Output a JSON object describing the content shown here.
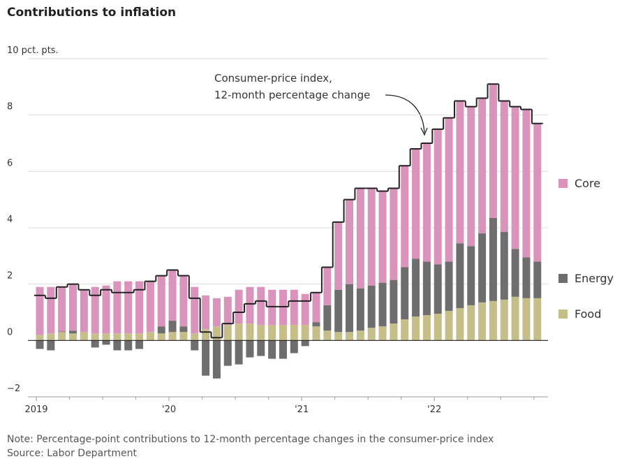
{
  "chart_data": {
    "type": "stacked-bar-with-step-line",
    "title": "Contributions to inflation",
    "annotation": [
      "Consumer-price index,",
      "12-month percentage change"
    ],
    "note": "Note: Percentage-point contributions to 12-month percentage changes in the consumer-price index",
    "source": "Source: Labor Department",
    "categories": [
      "2019",
      null,
      null,
      null,
      null,
      null,
      null,
      null,
      null,
      null,
      null,
      null,
      "'20",
      null,
      null,
      null,
      null,
      null,
      null,
      null,
      null,
      null,
      null,
      null,
      "'21",
      null,
      null,
      null,
      null,
      null,
      null,
      null,
      null,
      null,
      null,
      null,
      "'22",
      null,
      null,
      null,
      null,
      null,
      null,
      null,
      null,
      null
    ],
    "series": [
      {
        "name": "Food",
        "color": "#c6be88",
        "values": [
          0.2,
          0.25,
          0.3,
          0.25,
          0.3,
          0.25,
          0.25,
          0.25,
          0.25,
          0.25,
          0.3,
          0.25,
          0.3,
          0.3,
          0.25,
          0.4,
          0.5,
          0.55,
          0.6,
          0.6,
          0.55,
          0.55,
          0.55,
          0.55,
          0.55,
          0.5,
          0.35,
          0.3,
          0.3,
          0.35,
          0.45,
          0.5,
          0.6,
          0.75,
          0.85,
          0.9,
          0.95,
          1.05,
          1.15,
          1.25,
          1.35,
          1.4,
          1.45,
          1.55,
          1.5,
          1.5
        ]
      },
      {
        "name": "Energy",
        "color": "#6e6e6e",
        "values": [
          -0.3,
          -0.35,
          0.02,
          0.1,
          0,
          -0.25,
          -0.15,
          -0.35,
          -0.35,
          -0.3,
          0,
          0.25,
          0.4,
          0.2,
          -0.35,
          -1.25,
          -1.35,
          -0.9,
          -0.85,
          -0.6,
          -0.55,
          -0.65,
          -0.65,
          -0.45,
          -0.2,
          0.15,
          0.9,
          1.5,
          1.7,
          1.5,
          1.5,
          1.55,
          1.55,
          1.85,
          2.05,
          1.9,
          1.75,
          1.75,
          2.3,
          2.1,
          2.45,
          2.95,
          2.4,
          1.7,
          1.45,
          1.3
        ]
      },
      {
        "name": "Core",
        "color": "#da93ba",
        "values": [
          1.7,
          1.65,
          1.6,
          1.65,
          1.5,
          1.65,
          1.7,
          1.85,
          1.85,
          1.85,
          1.8,
          1.8,
          1.8,
          1.8,
          1.65,
          1.2,
          1.0,
          1.0,
          1.2,
          1.3,
          1.35,
          1.25,
          1.25,
          1.25,
          1.1,
          1.05,
          1.35,
          2.4,
          3.0,
          3.55,
          3.45,
          3.25,
          3.25,
          3.6,
          3.9,
          4.2,
          4.8,
          5.1,
          5.05,
          4.95,
          4.8,
          4.75,
          4.65,
          5.05,
          5.25,
          4.9
        ]
      },
      {
        "name": "Consumer-price index",
        "type": "step",
        "color": "#222222",
        "values": [
          1.6,
          1.5,
          1.9,
          2.0,
          1.8,
          1.6,
          1.8,
          1.7,
          1.7,
          1.8,
          2.1,
          2.3,
          2.5,
          2.3,
          1.5,
          0.3,
          0.1,
          0.6,
          1.0,
          1.3,
          1.4,
          1.2,
          1.2,
          1.4,
          1.4,
          1.7,
          2.6,
          4.2,
          5.0,
          5.4,
          5.4,
          5.3,
          5.4,
          6.2,
          6.8,
          7.0,
          7.5,
          7.9,
          8.5,
          8.3,
          8.6,
          9.1,
          8.5,
          8.3,
          8.2,
          7.7
        ]
      }
    ],
    "ylim": [
      -2,
      10
    ],
    "yticks": [
      {
        "value": 10,
        "label": "10 pct. pts."
      },
      8,
      6,
      4,
      2,
      0,
      {
        "value": -2,
        "label": "−2"
      }
    ],
    "grid": true
  }
}
